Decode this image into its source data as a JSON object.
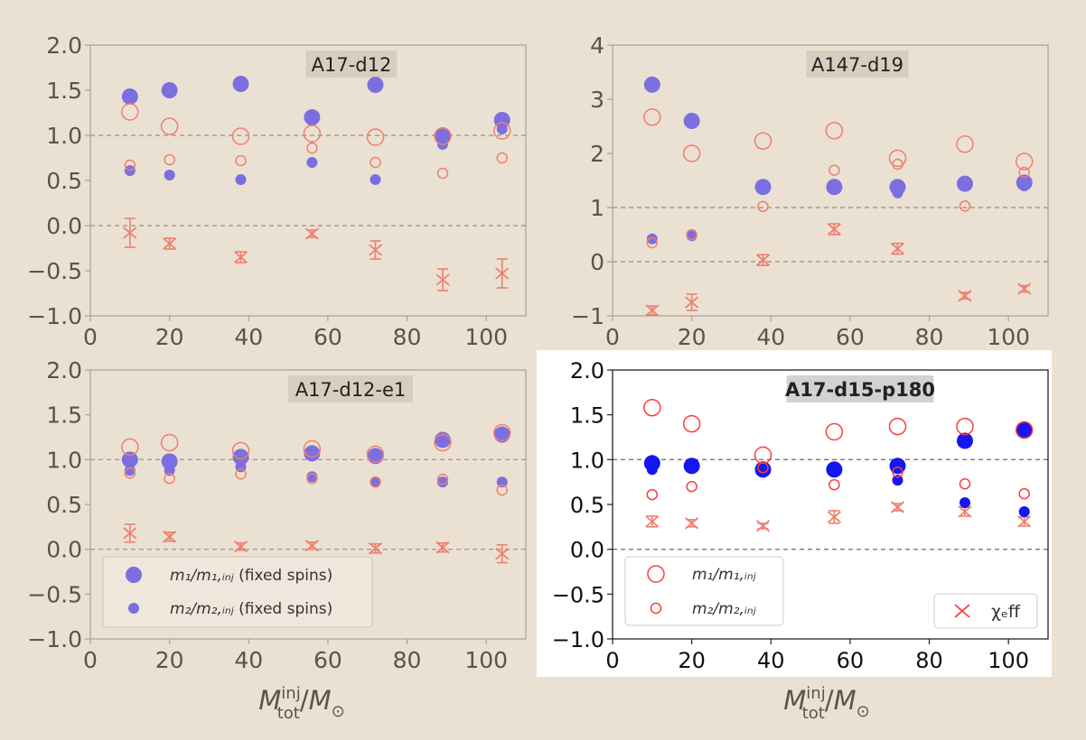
{
  "chart_data": [
    {
      "type": "scatter",
      "title": "A17-d12",
      "xlabel": "",
      "ylabel": "",
      "xlim": [
        0,
        110
      ],
      "ylim": [
        -1.0,
        2.0
      ],
      "xticks": [
        0,
        20,
        40,
        60,
        80,
        100
      ],
      "yticks": [
        -1.0,
        -0.5,
        0.0,
        0.5,
        1.0,
        1.5,
        2.0
      ],
      "ytick_labels": [
        "−1.0",
        "−0.5",
        "0.0",
        "0.5",
        "1.0",
        "1.5",
        "2.0"
      ],
      "reference_lines": [
        1.0,
        0.0
      ],
      "x": [
        10,
        20,
        38,
        56,
        72,
        89,
        104
      ],
      "series": [
        {
          "key": "m1_fixed",
          "values": [
            1.43,
            1.5,
            1.57,
            1.2,
            1.56,
            1.0,
            1.17
          ]
        },
        {
          "key": "m2_fixed",
          "values": [
            0.61,
            0.56,
            0.51,
            0.7,
            0.51,
            0.9,
            1.07
          ]
        },
        {
          "key": "m1",
          "values": [
            1.26,
            1.1,
            0.99,
            1.02,
            0.98,
            0.99,
            1.05
          ]
        },
        {
          "key": "m2",
          "values": [
            0.67,
            0.73,
            0.72,
            0.86,
            0.7,
            0.58,
            0.75
          ]
        },
        {
          "key": "chi_eff",
          "values": [
            -0.08,
            -0.2,
            -0.35,
            -0.09,
            -0.27,
            -0.6,
            -0.53
          ],
          "err": [
            0.16,
            0.06,
            0.06,
            0.04,
            0.1,
            0.12,
            0.16
          ]
        }
      ]
    },
    {
      "type": "scatter",
      "title": "A147-d19",
      "xlabel": "",
      "ylabel": "",
      "xlim": [
        0,
        110
      ],
      "ylim": [
        -1,
        4
      ],
      "xticks": [
        0,
        20,
        40,
        60,
        80,
        100
      ],
      "yticks": [
        -1,
        0,
        1,
        2,
        3,
        4
      ],
      "ytick_labels": [
        "−1",
        "0",
        "1",
        "2",
        "3",
        "4"
      ],
      "reference_lines": [
        1,
        0
      ],
      "x": [
        10,
        20,
        38,
        56,
        72,
        89,
        104
      ],
      "series": [
        {
          "key": "m1_fixed",
          "values": [
            3.27,
            2.6,
            1.38,
            1.38,
            1.38,
            1.44,
            1.46
          ]
        },
        {
          "key": "m2_fixed",
          "values": [
            0.42,
            0.48,
            1.38,
            1.38,
            1.27,
            1.44,
            1.4
          ]
        },
        {
          "key": "m1",
          "values": [
            2.67,
            2.0,
            2.23,
            2.42,
            1.91,
            2.17,
            1.85
          ]
        },
        {
          "key": "m2",
          "values": [
            0.35,
            0.5,
            1.02,
            1.69,
            1.8,
            1.03,
            1.65
          ]
        },
        {
          "key": "chi_eff",
          "values": [
            -0.9,
            -0.75,
            0.03,
            0.6,
            0.24,
            -0.63,
            -0.5
          ],
          "err": [
            0.08,
            0.15,
            0.1,
            0.1,
            0.1,
            0.06,
            0.06
          ]
        }
      ]
    },
    {
      "type": "scatter",
      "title": "A17-d12-e1",
      "xlabel": "M_tot^inj / M_⊙",
      "ylabel": "",
      "xlim": [
        0,
        110
      ],
      "ylim": [
        -1.0,
        2.0
      ],
      "xticks": [
        0,
        20,
        40,
        60,
        80,
        100
      ],
      "yticks": [
        -1.0,
        -0.5,
        0.0,
        0.5,
        1.0,
        1.5,
        2.0
      ],
      "ytick_labels": [
        "−1.0",
        "−0.5",
        "0.0",
        "0.5",
        "1.0",
        "1.5",
        "2.0"
      ],
      "reference_lines": [
        1.0,
        0.0
      ],
      "x": [
        10,
        20,
        38,
        56,
        72,
        89,
        104
      ],
      "series": [
        {
          "key": "m1_fixed",
          "values": [
            1.0,
            0.98,
            1.03,
            1.07,
            1.04,
            1.22,
            1.28
          ]
        },
        {
          "key": "m2_fixed",
          "values": [
            0.88,
            0.88,
            0.92,
            0.81,
            0.75,
            0.75,
            0.75
          ]
        },
        {
          "key": "m1",
          "values": [
            1.14,
            1.19,
            1.1,
            1.12,
            1.06,
            1.19,
            1.3
          ]
        },
        {
          "key": "m2",
          "values": [
            0.85,
            0.79,
            0.84,
            0.79,
            0.75,
            0.78,
            0.66
          ]
        },
        {
          "key": "chi_eff",
          "values": [
            0.18,
            0.14,
            0.03,
            0.04,
            0.01,
            0.02,
            -0.05
          ],
          "err": [
            0.1,
            0.05,
            0.04,
            0.04,
            0.05,
            0.05,
            0.1
          ]
        }
      ],
      "legend": {
        "placement": "lower-left",
        "entries": [
          {
            "key": "m1_fixed",
            "label_main": "m₁/m₁,ᵢₙⱼ",
            "label_extra": " (fixed spins)"
          },
          {
            "key": "m2_fixed",
            "label_main": "m₂/m₂,ᵢₙⱼ",
            "label_extra": " (fixed spins)"
          }
        ]
      }
    },
    {
      "type": "scatter",
      "title": "A17-d15-p180",
      "xlabel": "M_tot^inj / M_⊙",
      "ylabel": "",
      "xlim": [
        0,
        110
      ],
      "ylim": [
        -1.0,
        2.0
      ],
      "xticks": [
        0,
        20,
        40,
        60,
        80,
        100
      ],
      "yticks": [
        -1.0,
        -0.5,
        0.0,
        0.5,
        1.0,
        1.5,
        2.0
      ],
      "ytick_labels": [
        "−1.0",
        "−0.5",
        "0.0",
        "0.5",
        "1.0",
        "1.5",
        "2.0"
      ],
      "reference_lines": [
        1.0,
        0.0
      ],
      "x": [
        10,
        20,
        38,
        56,
        72,
        89,
        104
      ],
      "series": [
        {
          "key": "m1_fixed",
          "values": [
            0.96,
            0.93,
            0.89,
            0.89,
            0.93,
            1.21,
            1.33
          ]
        },
        {
          "key": "m2_fixed",
          "values": [
            0.89,
            0.93,
            0.89,
            0.89,
            0.77,
            0.52,
            0.42
          ]
        },
        {
          "key": "m1",
          "values": [
            1.58,
            1.4,
            1.05,
            1.31,
            1.37,
            1.37,
            1.33
          ]
        },
        {
          "key": "m2",
          "values": [
            0.61,
            0.7,
            0.91,
            0.72,
            0.86,
            0.73,
            0.62
          ]
        },
        {
          "key": "chi_eff",
          "values": [
            0.31,
            0.29,
            0.26,
            0.36,
            0.47,
            0.42,
            0.31
          ],
          "err": [
            0.06,
            0.04,
            0.03,
            0.07,
            0.04,
            0.05,
            0.05
          ]
        }
      ],
      "legend": {
        "placement": "lower-left",
        "entries": [
          {
            "key": "m1",
            "label_main": "m₁/m₁,ᵢₙⱼ",
            "label_extra": ""
          },
          {
            "key": "m2",
            "label_main": "m₂/m₂,ᵢₙⱼ",
            "label_extra": ""
          }
        ]
      },
      "legend2": {
        "placement": "lower-right",
        "entries": [
          {
            "key": "chi_eff",
            "label_main": "χₑff",
            "label_extra": ""
          }
        ]
      }
    }
  ],
  "styles": {
    "m1_fixed": {
      "marker": "filled-large",
      "color": "#7b6fe0"
    },
    "m2_fixed": {
      "marker": "filled-small",
      "color": "#7b6fe0"
    },
    "m1_fixed_bright": {
      "color": "#1616f0"
    },
    "m1": {
      "marker": "open-large",
      "color": "#ee7f6e"
    },
    "m2": {
      "marker": "open-small",
      "color": "#ee7f6e"
    },
    "chi_eff": {
      "marker": "x",
      "color": "#ee7f6e"
    },
    "bright_red": "#ff3b3b",
    "axis_text": "#5a544c",
    "background": "#ebe1d3"
  }
}
